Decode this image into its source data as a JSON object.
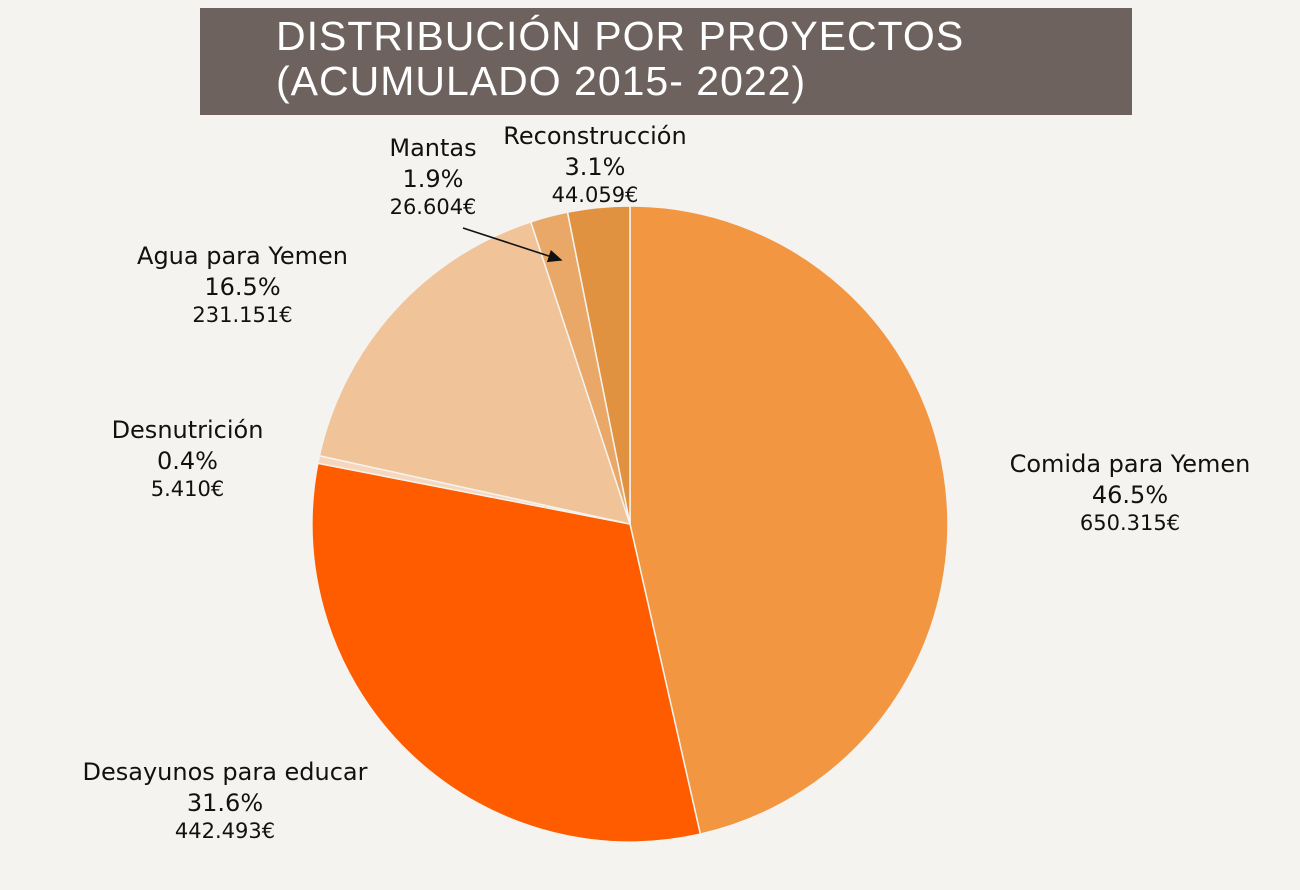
{
  "chart_data": {
    "type": "pie",
    "title_lines": [
      "DISTRIBUCIÓN POR PROYECTOS",
      "(ACUMULADO 2015- 2022)"
    ],
    "slices": [
      {
        "name": "Comida para Yemen",
        "percent": 46.5,
        "percent_label": "46.5%",
        "amount_label": "650.315€",
        "value": 650315,
        "color": "#f39641"
      },
      {
        "name": "Desayunos para educar",
        "percent": 31.6,
        "percent_label": "31.6%",
        "amount_label": "442.493€",
        "value": 442493,
        "color": "#ff5c00"
      },
      {
        "name": "Desnutrición",
        "percent": 0.4,
        "percent_label": "0.4%",
        "amount_label": "5.410€",
        "value": 5410,
        "color": "#f6d7bd"
      },
      {
        "name": "Agua para Yemen",
        "percent": 16.5,
        "percent_label": "16.5%",
        "amount_label": "231.151€",
        "value": 231151,
        "color": "#f0c399"
      },
      {
        "name": "Mantas",
        "percent": 1.9,
        "percent_label": "1.9%",
        "amount_label": "26.604€",
        "value": 26604,
        "color": "#e9a867"
      },
      {
        "name": "Reconstrucción",
        "percent": 3.1,
        "percent_label": "3.1%",
        "amount_label": "44.059€",
        "value": 44059,
        "color": "#e09240"
      }
    ],
    "legend": "none"
  }
}
